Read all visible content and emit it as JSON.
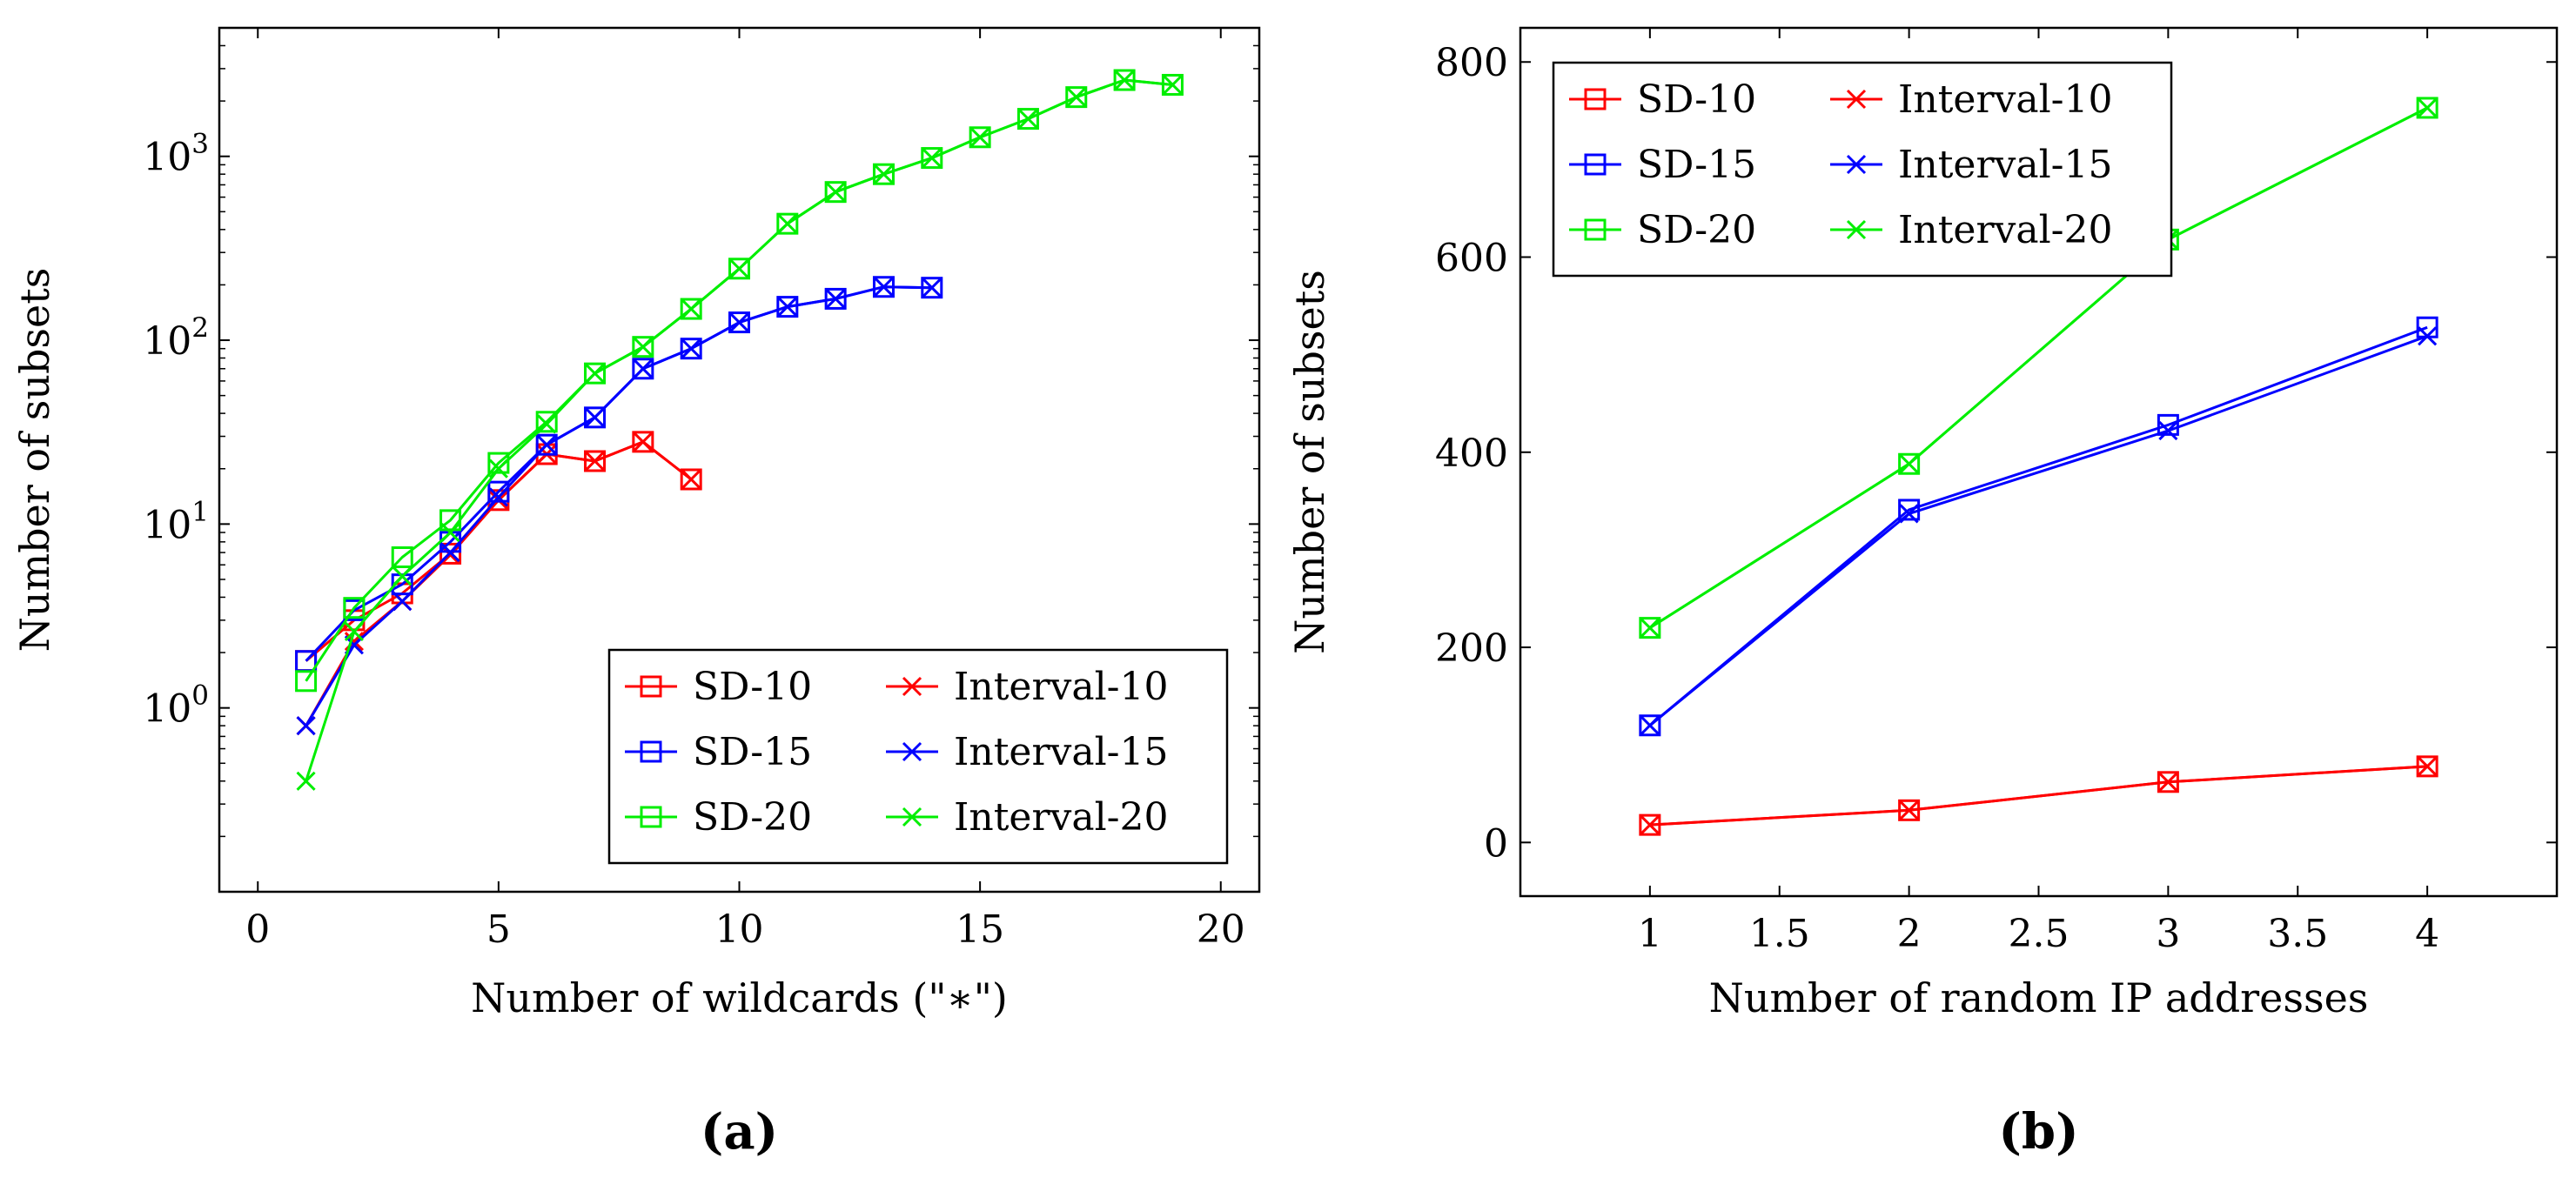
{
  "chart_data": [
    {
      "type": "line",
      "panel_label": "(a)",
      "xlabel": "Number of wildcards (\"∗\")",
      "ylabel": "Number of subsets",
      "xscale": "linear",
      "yscale": "log",
      "xlim": [
        -0.8,
        20.8
      ],
      "ylim": [
        0.1,
        5000
      ],
      "xticks": [
        0,
        5,
        10,
        15,
        20
      ],
      "xtick_labels": [
        "0",
        "5",
        "10",
        "15",
        "20"
      ],
      "yticks": [
        1,
        10,
        100,
        1000
      ],
      "ytick_bases": [
        "10",
        "10",
        "10",
        "10"
      ],
      "ytick_exps": [
        "0",
        "1",
        "2",
        "3"
      ],
      "legend_position": "bottom-right",
      "series": [
        {
          "name": "SD-10",
          "color": "#ff0000",
          "marker": "square",
          "x": [
            1,
            2,
            3,
            4,
            5,
            6,
            7,
            8,
            9
          ],
          "y": [
            1.8,
            3.0,
            4.2,
            6.9,
            13.5,
            24,
            22,
            28,
            17.5
          ]
        },
        {
          "name": "Interval-10",
          "color": "#ff0000",
          "marker": "cross",
          "x": [
            1,
            2,
            3,
            4,
            5,
            6,
            7,
            8,
            9
          ],
          "y": [
            0.8,
            2.3,
            3.8,
            6.8,
            13.5,
            24,
            22,
            28,
            17.5
          ]
        },
        {
          "name": "SD-15",
          "color": "#0000ff",
          "marker": "square",
          "x": [
            1,
            2,
            3,
            4,
            5,
            6,
            7,
            8,
            9,
            10,
            11,
            12,
            13,
            14
          ],
          "y": [
            1.8,
            3.4,
            4.7,
            8.0,
            15,
            27,
            38,
            70,
            90,
            125,
            152,
            168,
            195,
            193
          ]
        },
        {
          "name": "Interval-15",
          "color": "#0000ff",
          "marker": "cross",
          "x": [
            1,
            2,
            3,
            4,
            5,
            6,
            7,
            8,
            9,
            10,
            11,
            12,
            13,
            14
          ],
          "y": [
            0.8,
            2.2,
            3.8,
            7.0,
            14,
            27,
            38,
            70,
            90,
            125,
            152,
            168,
            195,
            193
          ]
        },
        {
          "name": "SD-20",
          "color": "#00ee00",
          "marker": "square",
          "x": [
            1,
            2,
            3,
            4,
            5,
            6,
            7,
            8,
            9,
            10,
            11,
            12,
            13,
            14,
            15,
            16,
            17,
            18,
            19
          ],
          "y": [
            1.4,
            3.5,
            6.6,
            10.5,
            21.5,
            36,
            66,
            92,
            148,
            245,
            430,
            640,
            800,
            980,
            1270,
            1600,
            2100,
            2600,
            2450
          ]
        },
        {
          "name": "Interval-20",
          "color": "#00ee00",
          "marker": "cross",
          "x": [
            1,
            2,
            3,
            4,
            5,
            6,
            7,
            8,
            9,
            10,
            11,
            12,
            13,
            14,
            15,
            16,
            17,
            18,
            19
          ],
          "y": [
            0.4,
            2.6,
            5.2,
            9.0,
            20.0,
            35,
            66,
            92,
            148,
            245,
            430,
            640,
            800,
            980,
            1270,
            1600,
            2100,
            2600,
            2450
          ]
        }
      ]
    },
    {
      "type": "line",
      "panel_label": "(b)",
      "xlabel": "Number of random IP addresses",
      "ylabel": "Number of subsets",
      "xscale": "linear",
      "yscale": "linear",
      "xlim": [
        0.5,
        4.5
      ],
      "ylim": [
        -55,
        835
      ],
      "xticks": [
        1,
        1.5,
        2,
        2.5,
        3,
        3.5,
        4
      ],
      "xtick_labels": [
        "1",
        "1.5",
        "2",
        "2.5",
        "3",
        "3.5",
        "4"
      ],
      "yticks": [
        0,
        200,
        400,
        600,
        800
      ],
      "ytick_labels": [
        "0",
        "200",
        "400",
        "600",
        "800"
      ],
      "legend_position": "top-left",
      "series": [
        {
          "name": "SD-10",
          "color": "#ff0000",
          "marker": "square",
          "x": [
            1,
            2,
            3,
            4
          ],
          "y": [
            18,
            33,
            62,
            78
          ]
        },
        {
          "name": "Interval-10",
          "color": "#ff0000",
          "marker": "cross",
          "x": [
            1,
            2,
            3,
            4
          ],
          "y": [
            18,
            33,
            62,
            78
          ]
        },
        {
          "name": "SD-15",
          "color": "#0000ff",
          "marker": "square",
          "x": [
            1,
            2,
            3,
            4
          ],
          "y": [
            120,
            341,
            428,
            528
          ]
        },
        {
          "name": "Interval-15",
          "color": "#0000ff",
          "marker": "cross",
          "x": [
            1,
            2,
            3,
            4
          ],
          "y": [
            120,
            337,
            422,
            519
          ]
        },
        {
          "name": "SD-20",
          "color": "#00ee00",
          "marker": "square",
          "x": [
            1,
            2,
            3,
            4
          ],
          "y": [
            220,
            388,
            618,
            753
          ]
        },
        {
          "name": "Interval-20",
          "color": "#00ee00",
          "marker": "cross",
          "x": [
            1,
            2,
            3,
            4
          ],
          "y": [
            220,
            388,
            618,
            753
          ]
        }
      ]
    }
  ]
}
